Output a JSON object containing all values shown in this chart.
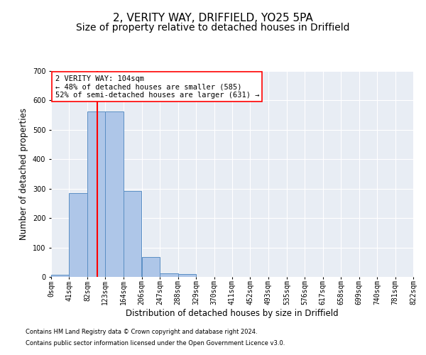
{
  "title": "2, VERITY WAY, DRIFFIELD, YO25 5PA",
  "subtitle": "Size of property relative to detached houses in Driffield",
  "xlabel": "Distribution of detached houses by size in Driffield",
  "ylabel": "Number of detached properties",
  "footnote1": "Contains HM Land Registry data © Crown copyright and database right 2024.",
  "footnote2": "Contains public sector information licensed under the Open Government Licence v3.0.",
  "bin_edges": [
    0,
    41,
    82,
    123,
    164,
    206,
    247,
    288,
    329,
    370,
    411,
    452,
    493,
    535,
    576,
    617,
    658,
    699,
    740,
    781,
    822
  ],
  "bar_heights": [
    8,
    285,
    563,
    563,
    293,
    68,
    13,
    10,
    0,
    0,
    0,
    0,
    0,
    0,
    0,
    0,
    0,
    0,
    0,
    0
  ],
  "bar_color": "#aec6e8",
  "bar_edge_color": "#5b8fc4",
  "vline_x": 104,
  "vline_color": "red",
  "annotation_text": "2 VERITY WAY: 104sqm\n← 48% of detached houses are smaller (585)\n52% of semi-detached houses are larger (631) →",
  "annotation_box_color": "white",
  "annotation_box_edgecolor": "red",
  "ylim": [
    0,
    700
  ],
  "yticks": [
    0,
    100,
    200,
    300,
    400,
    500,
    600,
    700
  ],
  "xlim": [
    0,
    822
  ],
  "background_color": "#e8edf4",
  "grid_color": "white",
  "title_fontsize": 11,
  "subtitle_fontsize": 10,
  "tick_label_fontsize": 7,
  "ylabel_fontsize": 8.5,
  "xlabel_fontsize": 8.5,
  "annotation_fontsize": 7.5,
  "footnote_fontsize": 6
}
